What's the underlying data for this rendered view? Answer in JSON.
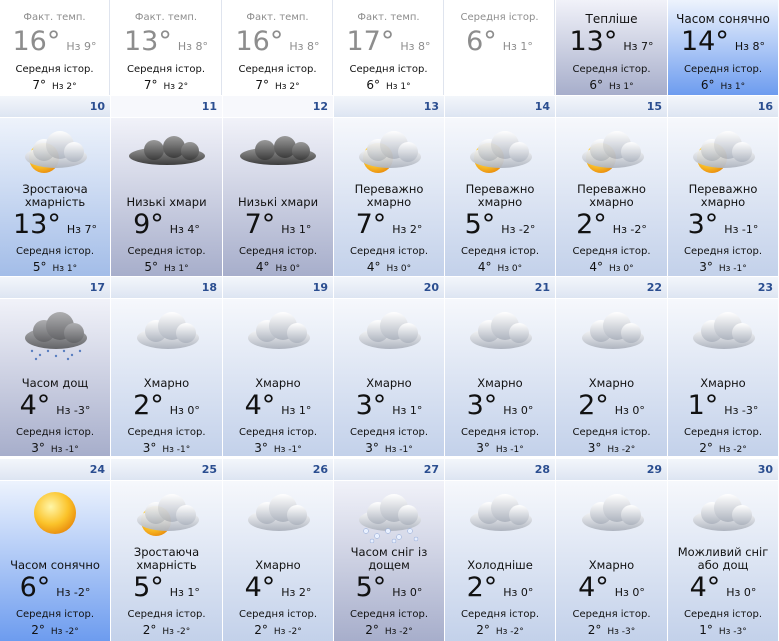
{
  "top_row": [
    {
      "label": "Факт. темп.",
      "temp": "16°",
      "low": "Нз 9°",
      "avg_label": "Середня істор.",
      "avg_temp": "7°",
      "avg_low": "Нз 2°"
    },
    {
      "label": "Факт. темп.",
      "temp": "13°",
      "low": "Нз 8°",
      "avg_label": "Середня істор.",
      "avg_temp": "7°",
      "avg_low": "Нз 2°"
    },
    {
      "label": "Факт. темп.",
      "temp": "16°",
      "low": "Нз 8°",
      "avg_label": "Середня істор.",
      "avg_temp": "7°",
      "avg_low": "Нз 2°"
    },
    {
      "label": "Факт. темп.",
      "temp": "17°",
      "low": "Нз 8°",
      "avg_label": "Середня істор.",
      "avg_temp": "6°",
      "avg_low": "Нз 1°"
    },
    {
      "label": "Середня істор.",
      "temp": "6°",
      "low": "Нз 1°"
    },
    {
      "label": "Тепліше",
      "temp": "13°",
      "low": "Нз 7°",
      "avg_label": "Середня істор.",
      "avg_temp": "6°",
      "avg_low": "Нз 1°"
    },
    {
      "label": "Часом сонячно",
      "temp": "14°",
      "low": "Нз 8°",
      "avg_label": "Середня істор.",
      "avg_temp": "6°",
      "avg_low": "Нз 1°"
    }
  ],
  "days": [
    {
      "day": 10,
      "desc": "Зростаюча хмарність",
      "temp": "13°",
      "low": "Нз 7°",
      "avg_label": "Середня істор.",
      "avg_temp": "5°",
      "avg_low": "Нз 1°"
    },
    {
      "day": 11,
      "desc": "Низькі хмари",
      "temp": "9°",
      "low": "Нз 4°",
      "avg_label": "Середня істор.",
      "avg_temp": "5°",
      "avg_low": "Нз 1°"
    },
    {
      "day": 12,
      "desc": "Низькі хмари",
      "temp": "7°",
      "low": "Нз 1°",
      "avg_label": "Середня істор.",
      "avg_temp": "4°",
      "avg_low": "Нз 0°"
    },
    {
      "day": 13,
      "desc": "Переважно хмарно",
      "temp": "7°",
      "low": "Нз 2°",
      "avg_label": "Середня істор.",
      "avg_temp": "4°",
      "avg_low": "Нз 0°"
    },
    {
      "day": 14,
      "desc": "Переважно хмарно",
      "temp": "5°",
      "low": "Нз -2°",
      "avg_label": "Середня істор.",
      "avg_temp": "4°",
      "avg_low": "Нз 0°"
    },
    {
      "day": 15,
      "desc": "Переважно хмарно",
      "temp": "2°",
      "low": "Нз -2°",
      "avg_label": "Середня істор.",
      "avg_temp": "4°",
      "avg_low": "Нз 0°"
    },
    {
      "day": 16,
      "desc": "Переважно хмарно",
      "temp": "3°",
      "low": "Нз -1°",
      "avg_label": "Середня істор.",
      "avg_temp": "3°",
      "avg_low": "Нз -1°"
    },
    {
      "day": 17,
      "desc": "Часом дощ",
      "temp": "4°",
      "low": "Нз -3°",
      "avg_label": "Середня істор.",
      "avg_temp": "3°",
      "avg_low": "Нз -1°"
    },
    {
      "day": 18,
      "desc": "Хмарно",
      "temp": "2°",
      "low": "Нз 0°",
      "avg_label": "Середня істор.",
      "avg_temp": "3°",
      "avg_low": "Нз -1°"
    },
    {
      "day": 19,
      "desc": "Хмарно",
      "temp": "4°",
      "low": "Нз 1°",
      "avg_label": "Середня істор.",
      "avg_temp": "3°",
      "avg_low": "Нз -1°"
    },
    {
      "day": 20,
      "desc": "Хмарно",
      "temp": "3°",
      "low": "Нз 1°",
      "avg_label": "Середня істор.",
      "avg_temp": "3°",
      "avg_low": "Нз -1°"
    },
    {
      "day": 21,
      "desc": "Хмарно",
      "temp": "3°",
      "low": "Нз 0°",
      "avg_label": "Середня істор.",
      "avg_temp": "3°",
      "avg_low": "Нз -1°"
    },
    {
      "day": 22,
      "desc": "Хмарно",
      "temp": "2°",
      "low": "Нз 0°",
      "avg_label": "Середня істор.",
      "avg_temp": "3°",
      "avg_low": "Нз -2°"
    },
    {
      "day": 23,
      "desc": "Хмарно",
      "temp": "1°",
      "low": "Нз -3°",
      "avg_label": "Середня істор.",
      "avg_temp": "2°",
      "avg_low": "Нз -2°"
    },
    {
      "day": 24,
      "desc": "Часом сонячно",
      "temp": "6°",
      "low": "Нз -2°",
      "avg_label": "Середня істор.",
      "avg_temp": "2°",
      "avg_low": "Нз -2°"
    },
    {
      "day": 25,
      "desc": "Зростаюча хмарність",
      "temp": "5°",
      "low": "Нз 1°",
      "avg_label": "Середня істор.",
      "avg_temp": "2°",
      "avg_low": "Нз -2°"
    },
    {
      "day": 26,
      "desc": "Хмарно",
      "temp": "4°",
      "low": "Нз 2°",
      "avg_label": "Середня істор.",
      "avg_temp": "2°",
      "avg_low": "Нз -2°"
    },
    {
      "day": 27,
      "desc": "Часом сніг із дощем",
      "temp": "5°",
      "low": "Нз 0°",
      "avg_label": "Середня істор.",
      "avg_temp": "2°",
      "avg_low": "Нз -2°"
    },
    {
      "day": 28,
      "desc": "Холодніше",
      "temp": "2°",
      "low": "Нз 0°",
      "avg_label": "Середня істор.",
      "avg_temp": "2°",
      "avg_low": "Нз -2°"
    },
    {
      "day": 29,
      "desc": "Хмарно",
      "temp": "4°",
      "low": "Нз 0°",
      "avg_label": "Середня істор.",
      "avg_temp": "2°",
      "avg_low": "Нз -3°"
    },
    {
      "day": 30,
      "desc": "Можливий сніг або дощ",
      "temp": "4°",
      "low": "Нз 0°",
      "avg_label": "Середня істор.",
      "avg_temp": "1°",
      "avg_low": "Нз -3°"
    }
  ]
}
